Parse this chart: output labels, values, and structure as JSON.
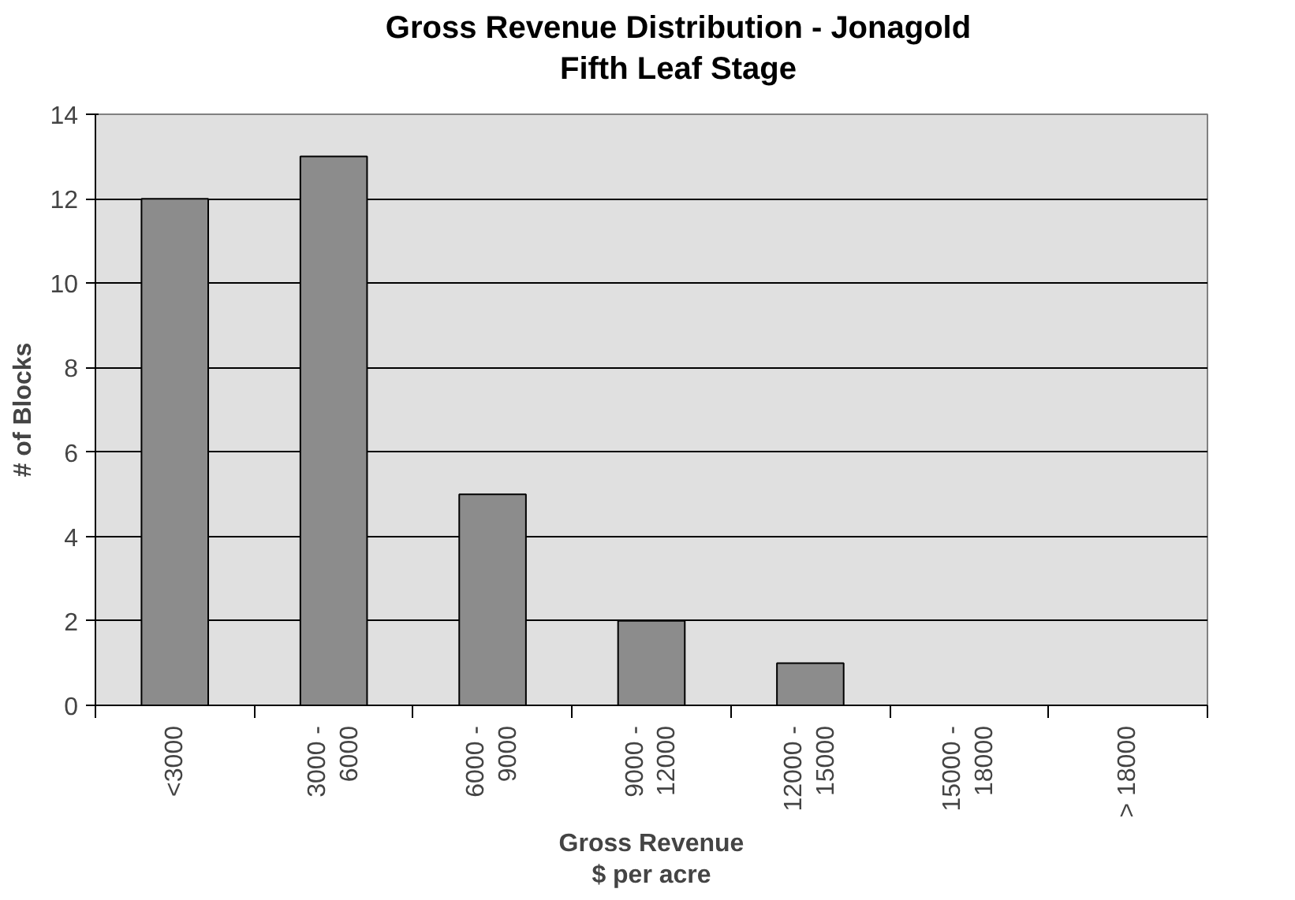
{
  "chart_data": {
    "type": "bar",
    "title": "Gross Revenue Distribution - Jonagold\nFifth Leaf Stage",
    "xlabel": "Gross Revenue\n$ per acre",
    "ylabel": "# of Blocks",
    "categories": [
      "<3000",
      "3000 -\n6000",
      "6000 -\n9000",
      "9000 -\n12000",
      "12000 -\n15000",
      "15000 -\n18000",
      "> 18000"
    ],
    "values": [
      12,
      13,
      5,
      2,
      1,
      0,
      0
    ],
    "color": "#8c8c8c",
    "ylim": [
      0,
      14
    ],
    "yticks": [
      0,
      2,
      4,
      6,
      8,
      10,
      12,
      14
    ],
    "grid": "y"
  }
}
